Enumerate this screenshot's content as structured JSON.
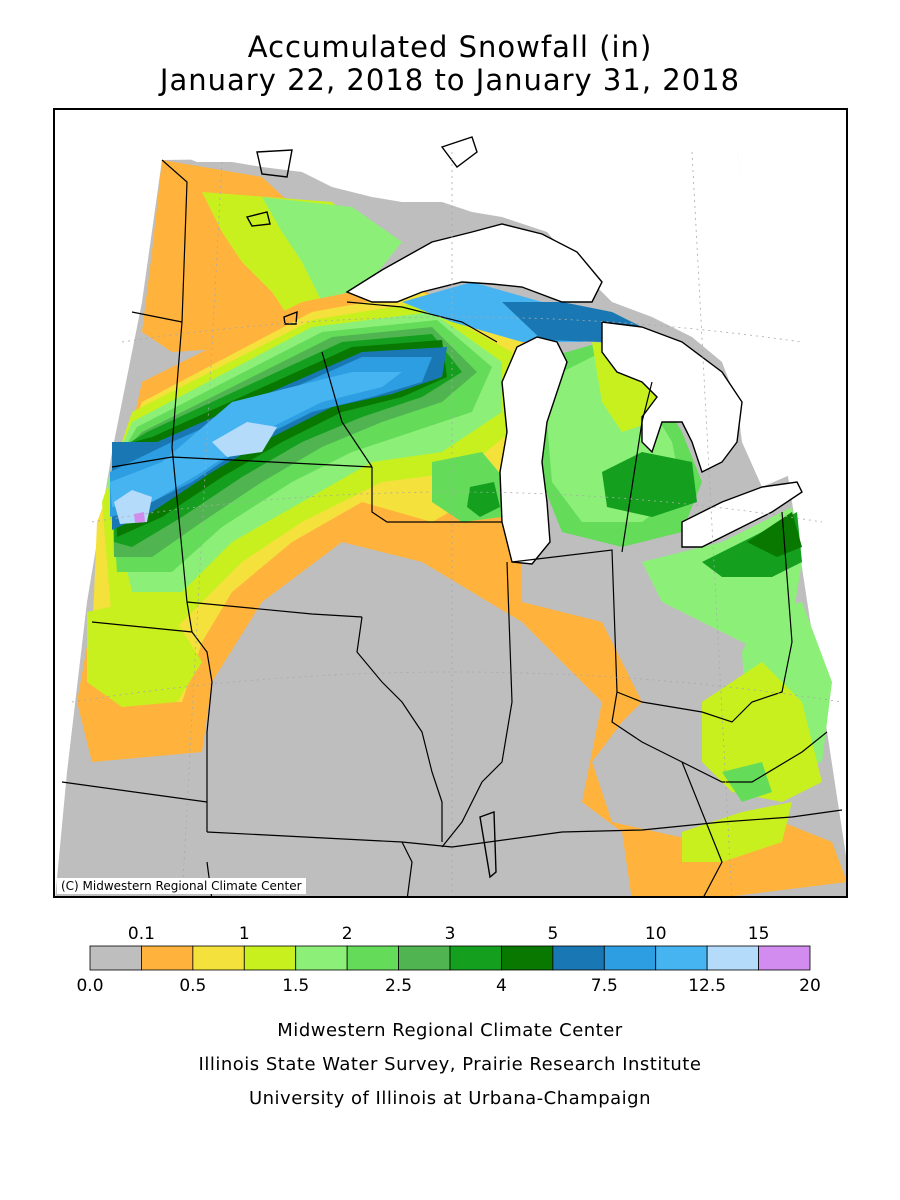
{
  "title": {
    "line1": "Accumulated Snowfall (in)",
    "line2": "January 22, 2018 to January 31, 2018"
  },
  "map": {
    "copyright": "(C) Midwestern Regional Climate Center",
    "colors": {
      "none": "#bebebe",
      "water": "#ffffff",
      "c_0_1": "#ffb33c",
      "c_0_5": "#f5e13c",
      "c_1": "#c8f01e",
      "c_1_5": "#8cf078",
      "c_2": "#64dc5a",
      "c_2_5": "#50b450",
      "c_3": "#14a01e",
      "c_4": "#087800",
      "c_5": "#1978b4",
      "c_7_5": "#2d9ee1",
      "c_10": "#46b4f0",
      "c_12_5": "#b4dcfa",
      "c_15": "#d28cf0"
    }
  },
  "legend": {
    "colors": [
      "#bebebe",
      "#ffb33c",
      "#f5e13c",
      "#c8f01e",
      "#8cf078",
      "#64dc5a",
      "#50b450",
      "#14a01e",
      "#087800",
      "#1978b4",
      "#2d9ee1",
      "#46b4f0",
      "#b4dcfa",
      "#d28cf0"
    ],
    "top_labels": [
      "0.1",
      "1",
      "2",
      "3",
      "5",
      "10",
      "15"
    ],
    "bottom_labels": [
      "0.0",
      "0.5",
      "1.5",
      "2.5",
      "4",
      "7.5",
      "12.5",
      "20"
    ]
  },
  "credits": {
    "line1": "Midwestern Regional Climate Center",
    "line2": "Illinois State Water Survey, Prairie Research Institute",
    "line3": "University of Illinois at Urbana-Champaign"
  }
}
